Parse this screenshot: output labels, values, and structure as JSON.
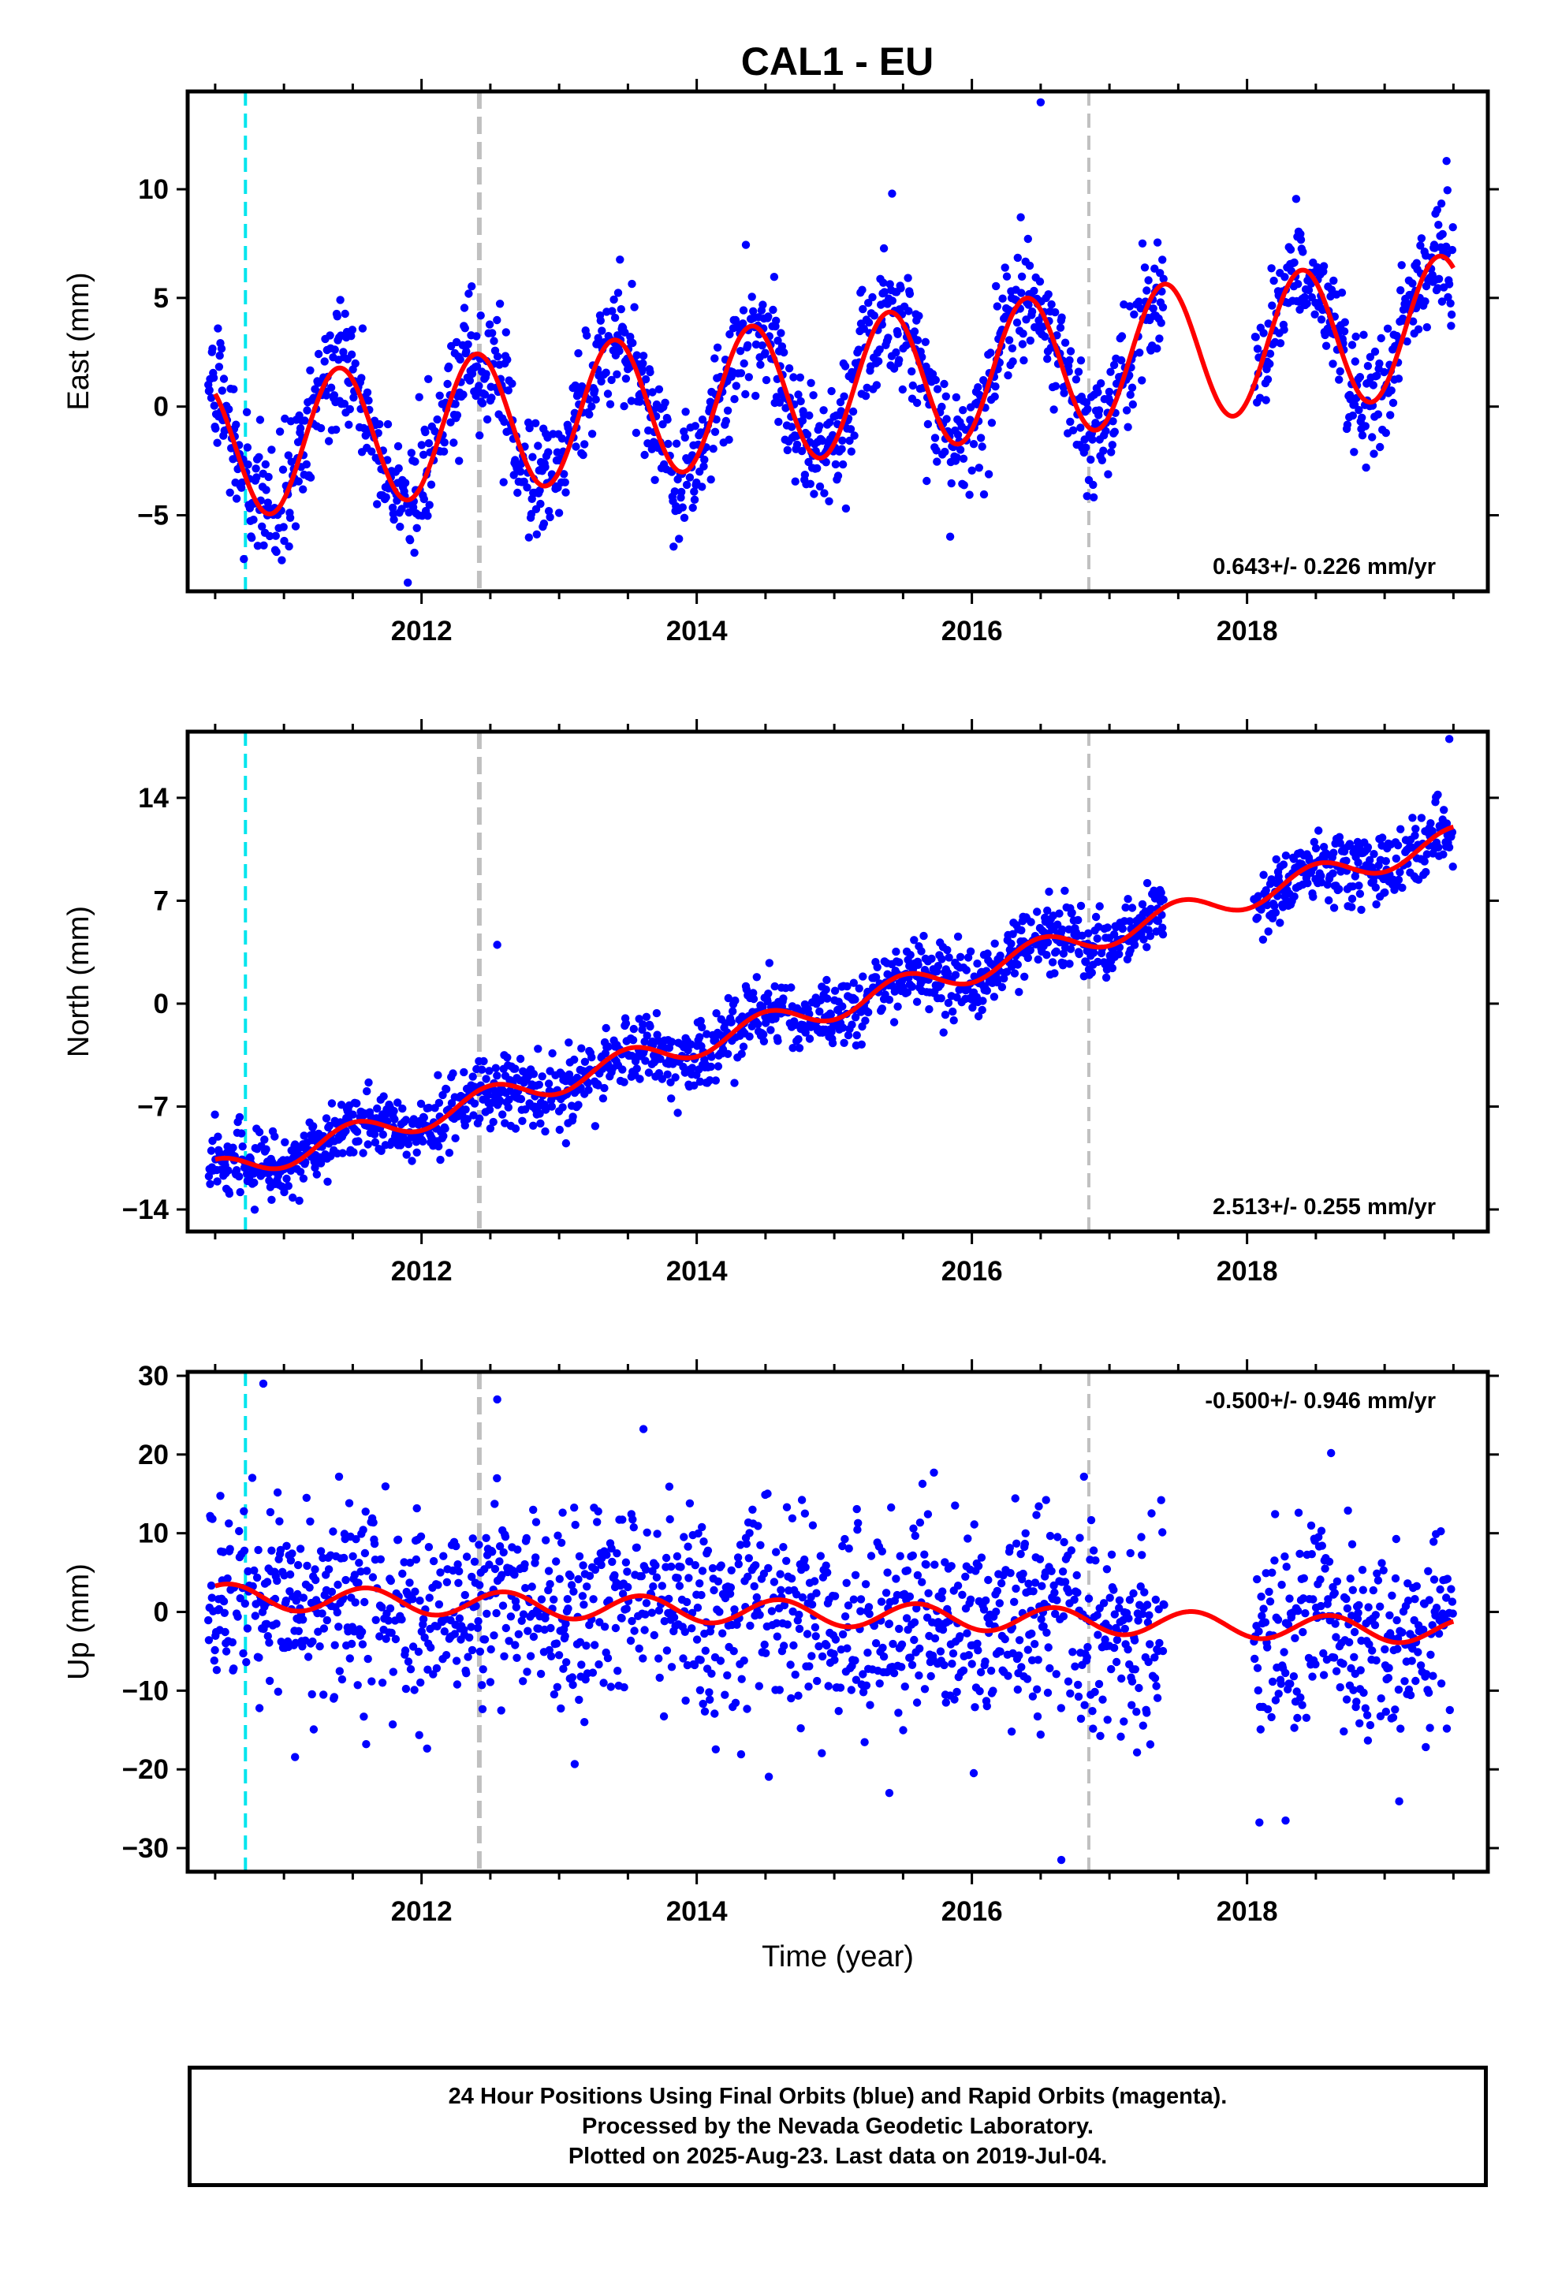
{
  "title": "CAL1 - EU",
  "colors": {
    "points": "#0000ff",
    "model": "#ff0000",
    "cyan_line": "#00e5ee",
    "gray_line": "#c0c0c0"
  },
  "chart_data": [
    {
      "type": "scatter",
      "component": "east",
      "ylabel": "East (mm)",
      "ylim": [
        -8.5,
        14.5
      ],
      "yticks": [
        -5,
        0,
        5,
        10
      ],
      "xlim": [
        2010.3,
        2019.75
      ],
      "xticks": [
        2012,
        2014,
        2016,
        2018
      ],
      "xlabel": "",
      "rate": "0.643+/- 0.226 mm/yr",
      "rate_position": "bottom-right",
      "trend": {
        "t0": 2010.5,
        "offset": -2.0,
        "slope": 0.643,
        "amplitude": 3.2,
        "phase_year": 2011.4
      },
      "noise": 1.4,
      "gaps": [
        [
          2017.4,
          2018.05
        ]
      ],
      "vlines": [
        {
          "x": 2010.72,
          "style": "cyan-dashed"
        },
        {
          "x": 2012.42,
          "style": "gray-dashed-thick"
        },
        {
          "x": 2016.85,
          "style": "gray-dashed"
        }
      ],
      "outliers": [
        {
          "x": 2016.5,
          "y": 14
        },
        {
          "x": 2019.45,
          "y": 11.3
        },
        {
          "x": 2015.42,
          "y": 9.8
        },
        {
          "x": 2011.9,
          "y": -8.1
        }
      ]
    },
    {
      "type": "scatter",
      "component": "north",
      "ylabel": "North (mm)",
      "ylim": [
        -15.5,
        18.5
      ],
      "yticks": [
        -14,
        -7,
        0,
        7,
        14
      ],
      "xlim": [
        2010.3,
        2019.75
      ],
      "xticks": [
        2012,
        2014,
        2016,
        2018
      ],
      "xlabel": "",
      "rate": "2.513+/- 0.255 mm/yr",
      "rate_position": "bottom-right",
      "trend": {
        "t0": 2010.5,
        "offset": -11.5,
        "slope": 2.513,
        "amplitude": 0.9,
        "phase_year": 2011.5
      },
      "noise": 1.2,
      "gaps": [
        [
          2017.4,
          2018.05
        ]
      ],
      "vlines": [
        {
          "x": 2010.72,
          "style": "cyan-dashed"
        },
        {
          "x": 2012.42,
          "style": "gray-dashed-thick"
        },
        {
          "x": 2016.85,
          "style": "gray-dashed"
        }
      ],
      "outliers": [
        {
          "x": 2019.47,
          "y": 18
        },
        {
          "x": 2012.55,
          "y": 4
        },
        {
          "x": 2013.05,
          "y": -9.5
        }
      ]
    },
    {
      "type": "scatter",
      "component": "up",
      "ylabel": "Up (mm)",
      "ylim": [
        -33,
        30.5
      ],
      "yticks": [
        -30,
        -20,
        -10,
        0,
        10,
        20,
        30
      ],
      "xlim": [
        2010.3,
        2019.75
      ],
      "xticks": [
        2012,
        2014,
        2016,
        2018
      ],
      "xlabel": "Time (year)",
      "rate": "-0.500+/- 0.946 mm/yr",
      "rate_position": "top-right",
      "trend": {
        "t0": 2010.5,
        "offset": 2.0,
        "slope": -0.5,
        "amplitude": 1.6,
        "phase_year": 2011.6
      },
      "noise": 6.5,
      "gaps": [
        [
          2017.4,
          2018.05
        ]
      ],
      "vlines": [
        {
          "x": 2010.72,
          "style": "cyan-dashed"
        },
        {
          "x": 2012.42,
          "style": "gray-dashed-thick"
        },
        {
          "x": 2016.85,
          "style": "gray-dashed"
        }
      ],
      "outliers": [
        {
          "x": 2010.85,
          "y": 29
        },
        {
          "x": 2016.65,
          "y": -31.5
        },
        {
          "x": 2018.28,
          "y": -26.5
        },
        {
          "x": 2015.4,
          "y": -23
        },
        {
          "x": 2012.55,
          "y": 27
        }
      ]
    }
  ],
  "footer": {
    "line1": "24 Hour Positions Using Final Orbits (blue) and Rapid Orbits (magenta).",
    "line2": "Processed by the Nevada Geodetic Laboratory.",
    "line3": "Plotted on 2025-Aug-23. Last data on 2019-Jul-04."
  }
}
